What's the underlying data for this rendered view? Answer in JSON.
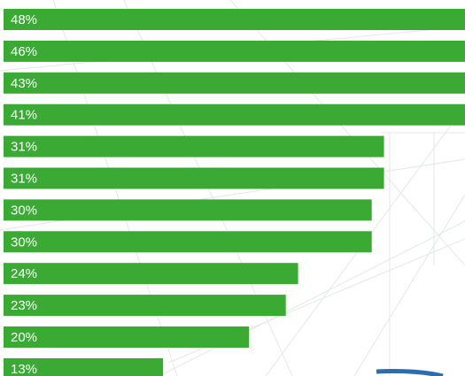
{
  "chart_data": {
    "type": "bar",
    "orientation": "horizontal",
    "categories": [
      null,
      null,
      null,
      null,
      null,
      null,
      null,
      null,
      null,
      null,
      null,
      null
    ],
    "values": [
      48,
      46,
      43,
      41,
      31,
      31,
      30,
      30,
      24,
      23,
      20,
      13
    ],
    "value_labels": [
      "48%",
      "46%",
      "43%",
      "41%",
      "31%",
      "31%",
      "30%",
      "30%",
      "24%",
      "23%",
      "20%",
      "13%"
    ],
    "color": "#3aaa35",
    "xlim": [
      0,
      37.6
    ]
  }
}
